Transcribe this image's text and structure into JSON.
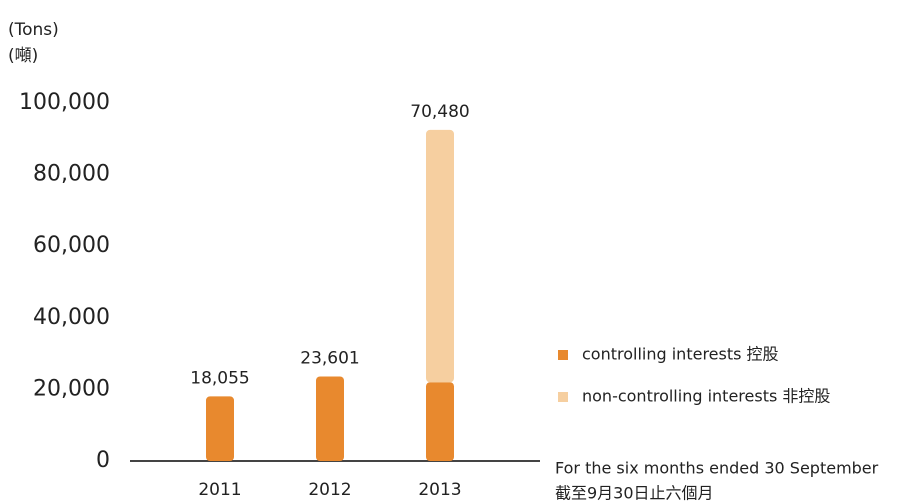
{
  "chart_data": {
    "type": "stacked_bar",
    "unit_label": "(Tons)",
    "unit_label_zh": "(噸)",
    "categories": [
      "2011",
      "2012",
      "2013"
    ],
    "series": [
      {
        "name": "controlling interests 控股",
        "color": "#e8892e",
        "values": [
          18055,
          23601,
          22000
        ],
        "value_labels": [
          "18,055",
          "23,601",
          null
        ]
      },
      {
        "name": "non-controlling interests 非控股",
        "color": "#f6cfa0",
        "values": [
          0,
          0,
          70480
        ],
        "value_labels": [
          null,
          null,
          "70,480"
        ]
      }
    ],
    "ylim": [
      0,
      100000
    ],
    "yticks": [
      0,
      {
        "value": 20000,
        "label": "20,000"
      },
      {
        "value": 40000,
        "label": "40,000"
      },
      {
        "value": 60000,
        "label": "60,000"
      },
      {
        "value": 80000,
        "label": "80,000"
      },
      {
        "value": 100000,
        "label": "100,000"
      }
    ],
    "grid": false,
    "footnote": [
      "For the six months ended 30 September",
      "截至9月30日止六個月"
    ]
  }
}
